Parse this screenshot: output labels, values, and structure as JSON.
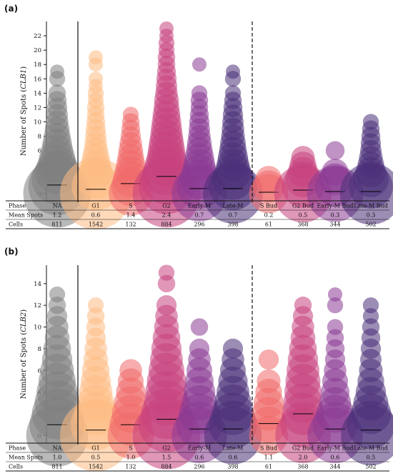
{
  "phases": [
    "NA",
    "G1",
    "S",
    "G2",
    "Early-M",
    "Late-M",
    "S Bud",
    "G2 Bud",
    "Early-M Bud",
    "Late-M Bud"
  ],
  "colors": [
    "#808080",
    "#fdbb84",
    "#f1696a",
    "#c7427e",
    "#8b3a94",
    "#4a2f78",
    "#f1696a",
    "#c7427e",
    "#8b3a94",
    "#4a2f78"
  ],
  "table_labels": {
    "phase": "Phase",
    "mean": "Mean Spots",
    "cells": "Cells"
  },
  "chart_data": [
    {
      "panel": "(a)",
      "type": "scatter",
      "ylabel_prefix": "Number of Spots (",
      "ylabel_gene": "CLB1",
      "ylabel_suffix": ")",
      "ylim": [
        -1,
        24
      ],
      "yticks": [
        0,
        2,
        4,
        6,
        8,
        10,
        12,
        14,
        16,
        18,
        20,
        22
      ],
      "means": [
        1.2,
        0.6,
        1.4,
        2.4,
        0.7,
        0.7,
        0.2,
        0.5,
        0.3,
        0.3
      ],
      "mean_labels": [
        "1.2",
        "0.6",
        "1.4",
        "2.4",
        "0.7",
        "0.7",
        "0.2",
        "0.5",
        "0.3",
        "0.3"
      ],
      "cells": [
        "811",
        "1542",
        "132",
        "884",
        "296",
        "398",
        "61",
        "368",
        "344",
        "502"
      ],
      "spots": [
        [
          [
            0,
            0.9
          ],
          [
            1,
            0.65
          ],
          [
            2,
            0.5
          ],
          [
            3,
            0.38
          ],
          [
            4,
            0.3
          ],
          [
            5,
            0.25
          ],
          [
            6,
            0.2
          ],
          [
            7,
            0.17
          ],
          [
            8,
            0.14
          ],
          [
            9,
            0.12
          ],
          [
            10,
            0.1
          ],
          [
            11,
            0.09
          ],
          [
            12,
            0.08
          ],
          [
            13,
            0.07
          ],
          [
            14,
            0.06
          ],
          [
            16,
            0.05
          ],
          [
            17,
            0.04
          ]
        ],
        [
          [
            0,
            1.0
          ],
          [
            1,
            0.45
          ],
          [
            2,
            0.3
          ],
          [
            3,
            0.22
          ],
          [
            4,
            0.18
          ],
          [
            5,
            0.15
          ],
          [
            6,
            0.12
          ],
          [
            7,
            0.1
          ],
          [
            8,
            0.09
          ],
          [
            9,
            0.08
          ],
          [
            10,
            0.07
          ],
          [
            11,
            0.06
          ],
          [
            12,
            0.06
          ],
          [
            13,
            0.05
          ],
          [
            14,
            0.05
          ],
          [
            15,
            0.04
          ],
          [
            16,
            0.04
          ],
          [
            18,
            0.04
          ],
          [
            19,
            0.04
          ]
        ],
        [
          [
            0,
            0.38
          ],
          [
            1,
            0.3
          ],
          [
            2,
            0.25
          ],
          [
            3,
            0.2
          ],
          [
            4,
            0.17
          ],
          [
            5,
            0.14
          ],
          [
            6,
            0.12
          ],
          [
            7,
            0.1
          ],
          [
            8,
            0.08
          ],
          [
            9,
            0.07
          ],
          [
            10,
            0.06
          ],
          [
            11,
            0.05
          ]
        ],
        [
          [
            0,
            0.9
          ],
          [
            1,
            0.6
          ],
          [
            2,
            0.5
          ],
          [
            3,
            0.42
          ],
          [
            4,
            0.36
          ],
          [
            5,
            0.3
          ],
          [
            6,
            0.27
          ],
          [
            7,
            0.24
          ],
          [
            8,
            0.21
          ],
          [
            9,
            0.19
          ],
          [
            10,
            0.17
          ],
          [
            11,
            0.15
          ],
          [
            12,
            0.13
          ],
          [
            13,
            0.12
          ],
          [
            14,
            0.1
          ],
          [
            15,
            0.09
          ],
          [
            16,
            0.08
          ],
          [
            17,
            0.07
          ],
          [
            18,
            0.06
          ],
          [
            19,
            0.06
          ],
          [
            20,
            0.05
          ],
          [
            21,
            0.05
          ],
          [
            22,
            0.04
          ],
          [
            23,
            0.04
          ]
        ],
        [
          [
            0,
            0.6
          ],
          [
            1,
            0.4
          ],
          [
            2,
            0.3
          ],
          [
            3,
            0.24
          ],
          [
            4,
            0.2
          ],
          [
            5,
            0.17
          ],
          [
            6,
            0.14
          ],
          [
            7,
            0.12
          ],
          [
            8,
            0.1
          ],
          [
            9,
            0.09
          ],
          [
            10,
            0.08
          ],
          [
            11,
            0.07
          ],
          [
            12,
            0.06
          ],
          [
            13,
            0.06
          ],
          [
            14,
            0.05
          ],
          [
            18,
            0.04
          ]
        ],
        [
          [
            0,
            0.7
          ],
          [
            1,
            0.45
          ],
          [
            2,
            0.33
          ],
          [
            3,
            0.26
          ],
          [
            4,
            0.21
          ],
          [
            5,
            0.18
          ],
          [
            6,
            0.15
          ],
          [
            7,
            0.13
          ],
          [
            8,
            0.11
          ],
          [
            9,
            0.1
          ],
          [
            10,
            0.09
          ],
          [
            11,
            0.08
          ],
          [
            12,
            0.07
          ],
          [
            13,
            0.06
          ],
          [
            14,
            0.05
          ],
          [
            16,
            0.05
          ],
          [
            17,
            0.04
          ]
        ],
        [
          [
            0,
            0.3
          ],
          [
            1,
            0.2
          ],
          [
            2,
            0.14
          ]
        ],
        [
          [
            0,
            0.65
          ],
          [
            1,
            0.35
          ],
          [
            2,
            0.25
          ],
          [
            3,
            0.18
          ],
          [
            4,
            0.14
          ],
          [
            5,
            0.11
          ]
        ],
        [
          [
            0,
            0.62
          ],
          [
            1,
            0.32
          ],
          [
            2,
            0.2
          ],
          [
            3,
            0.14
          ],
          [
            6,
            0.07
          ]
        ],
        [
          [
            0,
            0.75
          ],
          [
            1,
            0.38
          ],
          [
            2,
            0.25
          ],
          [
            3,
            0.18
          ],
          [
            4,
            0.14
          ],
          [
            5,
            0.11
          ],
          [
            6,
            0.09
          ],
          [
            7,
            0.08
          ],
          [
            8,
            0.07
          ],
          [
            9,
            0.06
          ],
          [
            10,
            0.05
          ]
        ]
      ]
    },
    {
      "panel": "(b)",
      "type": "scatter",
      "ylabel_prefix": "Number of Spots (",
      "ylabel_gene": "CLB2",
      "ylabel_suffix": ")",
      "ylim": [
        -0.7,
        15.7
      ],
      "yticks": [
        0,
        2,
        4,
        6,
        8,
        10,
        12,
        14
      ],
      "means": [
        1.0,
        0.5,
        1.0,
        1.5,
        0.6,
        0.6,
        1.1,
        2.0,
        0.6,
        0.5
      ],
      "mean_labels": [
        "1.0",
        "0.5",
        "1.0",
        "1.5",
        "0.6",
        "0.6",
        "1.1",
        "2.0",
        "0.6",
        "0.5"
      ],
      "cells": [
        "811",
        "1542",
        "132",
        "884",
        "296",
        "398",
        "61",
        "368",
        "344",
        "502"
      ],
      "spots": [
        [
          [
            0,
            0.75
          ],
          [
            1,
            0.6
          ],
          [
            2,
            0.5
          ],
          [
            3,
            0.4
          ],
          [
            4,
            0.33
          ],
          [
            5,
            0.27
          ],
          [
            6,
            0.22
          ],
          [
            7,
            0.18
          ],
          [
            8,
            0.15
          ],
          [
            9,
            0.12
          ],
          [
            10,
            0.1
          ],
          [
            11,
            0.08
          ],
          [
            12,
            0.06
          ],
          [
            13,
            0.05
          ]
        ],
        [
          [
            0,
            1.0
          ],
          [
            1,
            0.5
          ],
          [
            2,
            0.36
          ],
          [
            3,
            0.27
          ],
          [
            4,
            0.22
          ],
          [
            5,
            0.18
          ],
          [
            6,
            0.15
          ],
          [
            7,
            0.12
          ],
          [
            8,
            0.1
          ],
          [
            9,
            0.08
          ],
          [
            10,
            0.07
          ],
          [
            11,
            0.06
          ],
          [
            12,
            0.05
          ]
        ],
        [
          [
            0,
            0.42
          ],
          [
            1,
            0.35
          ],
          [
            2,
            0.28
          ],
          [
            3,
            0.22
          ],
          [
            4,
            0.17
          ],
          [
            5,
            0.13
          ],
          [
            6,
            0.1
          ]
        ],
        [
          [
            0,
            0.9
          ],
          [
            1,
            0.6
          ],
          [
            2,
            0.5
          ],
          [
            3,
            0.4
          ],
          [
            4,
            0.35
          ],
          [
            5,
            0.3
          ],
          [
            6,
            0.25
          ],
          [
            7,
            0.21
          ],
          [
            8,
            0.18
          ],
          [
            9,
            0.15
          ],
          [
            10,
            0.12
          ],
          [
            11,
            0.1
          ],
          [
            12,
            0.08
          ],
          [
            14,
            0.06
          ],
          [
            15,
            0.05
          ]
        ],
        [
          [
            0,
            0.6
          ],
          [
            1,
            0.42
          ],
          [
            2,
            0.32
          ],
          [
            3,
            0.25
          ],
          [
            4,
            0.2
          ],
          [
            5,
            0.16
          ],
          [
            6,
            0.13
          ],
          [
            7,
            0.1
          ],
          [
            8,
            0.08
          ],
          [
            10,
            0.06
          ]
        ],
        [
          [
            0,
            0.65
          ],
          [
            1,
            0.45
          ],
          [
            2,
            0.35
          ],
          [
            3,
            0.27
          ],
          [
            4,
            0.21
          ],
          [
            5,
            0.17
          ],
          [
            6,
            0.13
          ],
          [
            7,
            0.1
          ],
          [
            8,
            0.08
          ]
        ],
        [
          [
            0,
            0.3
          ],
          [
            1,
            0.26
          ],
          [
            2,
            0.22
          ],
          [
            3,
            0.18
          ],
          [
            4,
            0.14
          ],
          [
            5,
            0.11
          ],
          [
            7,
            0.08
          ]
        ],
        [
          [
            0,
            0.6
          ],
          [
            1,
            0.4
          ],
          [
            2,
            0.35
          ],
          [
            3,
            0.3
          ],
          [
            4,
            0.27
          ],
          [
            5,
            0.24
          ],
          [
            6,
            0.21
          ],
          [
            7,
            0.18
          ],
          [
            8,
            0.15
          ],
          [
            9,
            0.12
          ],
          [
            10,
            0.1
          ],
          [
            11,
            0.08
          ],
          [
            12,
            0.06
          ]
        ],
        [
          [
            0,
            0.6
          ],
          [
            1,
            0.4
          ],
          [
            2,
            0.28
          ],
          [
            3,
            0.2
          ],
          [
            4,
            0.16
          ],
          [
            5,
            0.13
          ],
          [
            6,
            0.1
          ],
          [
            7,
            0.08
          ],
          [
            8,
            0.07
          ],
          [
            9,
            0.06
          ],
          [
            10,
            0.05
          ],
          [
            12,
            0.05
          ],
          [
            13,
            0.04
          ]
        ],
        [
          [
            0,
            0.7
          ],
          [
            1,
            0.45
          ],
          [
            2,
            0.32
          ],
          [
            3,
            0.24
          ],
          [
            4,
            0.18
          ],
          [
            5,
            0.14
          ],
          [
            6,
            0.11
          ],
          [
            7,
            0.09
          ],
          [
            8,
            0.08
          ],
          [
            9,
            0.07
          ],
          [
            10,
            0.06
          ],
          [
            11,
            0.05
          ],
          [
            12,
            0.05
          ]
        ]
      ]
    }
  ]
}
